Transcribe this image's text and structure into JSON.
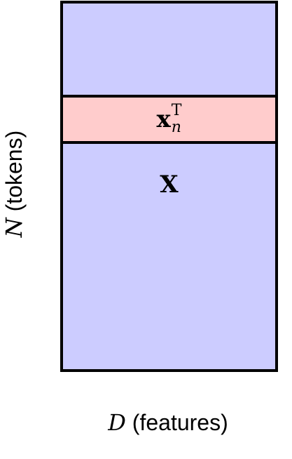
{
  "colors": {
    "matrix_fill": "#ccccff",
    "row_fill": "#ffcccc",
    "border": "#000000"
  },
  "matrix": {
    "label": "X"
  },
  "row": {
    "symbol": "x",
    "superscript": "T",
    "subscript": "n"
  },
  "axes": {
    "y": {
      "variable": "N",
      "text": "(tokens)"
    },
    "x": {
      "variable": "D",
      "text": "(features)"
    }
  }
}
